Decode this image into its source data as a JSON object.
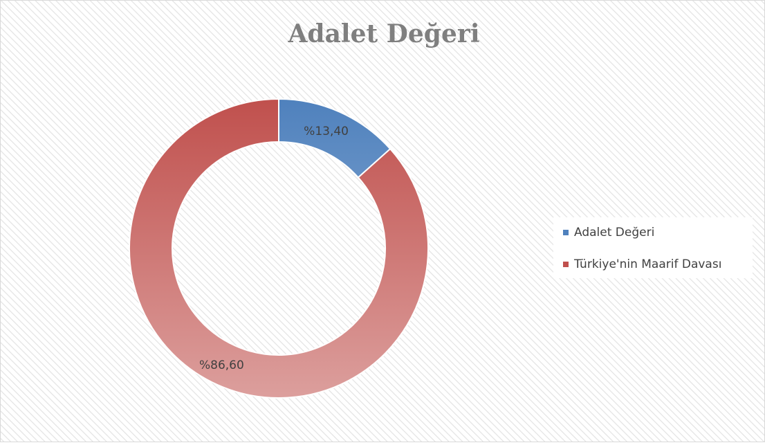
{
  "chart_data": {
    "type": "doughnut",
    "title": "Adalet Değeri",
    "categories": [
      "Adalet Değeri",
      "Türkiye'nin Maarif Davası"
    ],
    "values": [
      13.4,
      86.6
    ],
    "value_labels": [
      "%13,40",
      "%86,60"
    ],
    "colors": [
      "#4f81bd",
      "#c0504d"
    ],
    "legend": "right"
  }
}
